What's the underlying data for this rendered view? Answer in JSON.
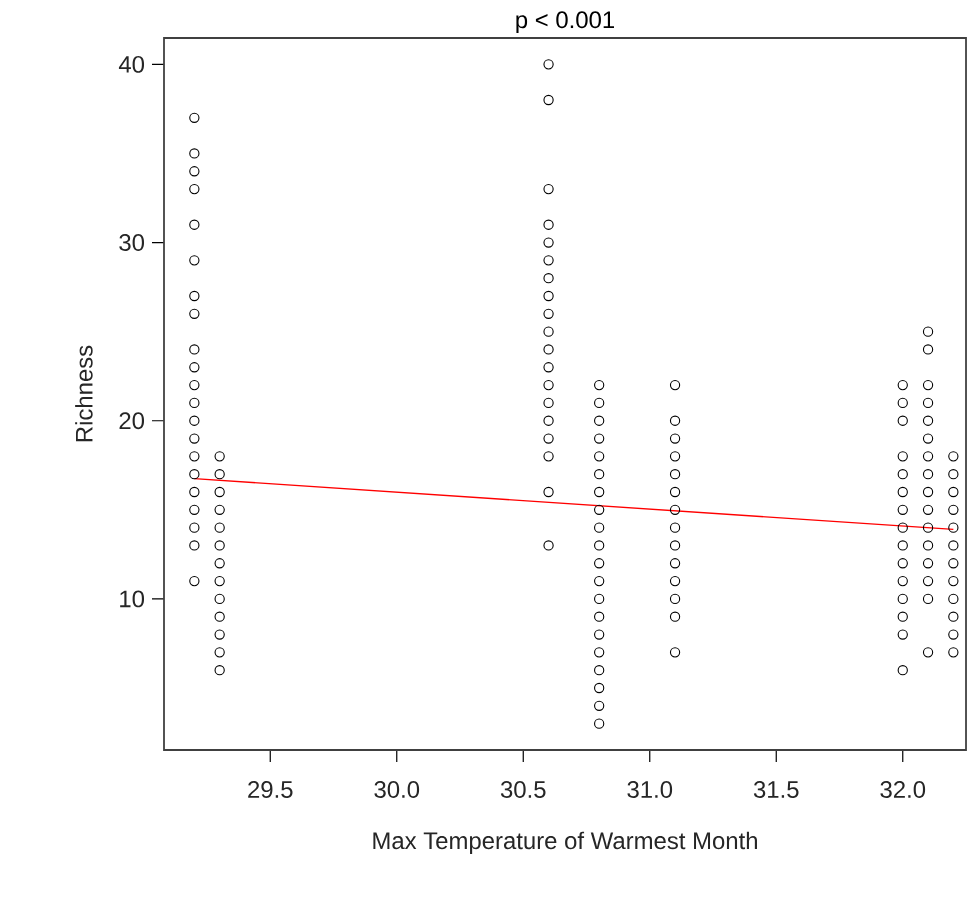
{
  "chart_data": {
    "type": "scatter",
    "title": "p < 0.001",
    "xlabel": "Max Temperature of Warmest Month",
    "ylabel": "Richness",
    "xlim": [
      29.08,
      32.25
    ],
    "ylim": [
      1.52,
      41.48
    ],
    "xticks": [
      29.5,
      {
        "value": 30.0,
        "label": "30.0"
      },
      30.5,
      {
        "value": 31.0,
        "label": "31.0"
      },
      31.5,
      {
        "value": 32.0,
        "label": "32.0"
      }
    ],
    "yticks": [
      10,
      20,
      30,
      40
    ],
    "marker": "circle",
    "series": [
      {
        "color": "#000000",
        "x": [
          29.2,
          29.2,
          29.2,
          29.2,
          29.2,
          29.2,
          29.2,
          29.2,
          29.2,
          29.2,
          29.2,
          29.2,
          29.2,
          29.2,
          29.2,
          29.2,
          29.2,
          29.2,
          29.2,
          29.2,
          29.2,
          29.3,
          29.3,
          29.3,
          29.3,
          29.3,
          29.3,
          29.3,
          29.3,
          29.3,
          29.3,
          29.3,
          29.3,
          29.3,
          30.6,
          30.6,
          30.6,
          30.6,
          30.6,
          30.6,
          30.6,
          30.6,
          30.6,
          30.6,
          30.6,
          30.6,
          30.6,
          30.6,
          30.6,
          30.6,
          30.6,
          30.6,
          30.6,
          30.8,
          30.8,
          30.8,
          30.8,
          30.8,
          30.8,
          30.8,
          30.8,
          30.8,
          30.8,
          30.8,
          30.8,
          30.8,
          30.8,
          30.8,
          30.8,
          30.8,
          30.8,
          30.8,
          30.8,
          31.1,
          31.1,
          31.1,
          31.1,
          31.1,
          31.1,
          31.1,
          31.1,
          31.1,
          31.1,
          31.1,
          31.1,
          31.1,
          31.1,
          32.0,
          32.0,
          32.0,
          32.0,
          32.0,
          32.0,
          32.0,
          32.0,
          32.0,
          32.0,
          32.0,
          32.0,
          32.0,
          32.0,
          32.0,
          32.1,
          32.1,
          32.1,
          32.1,
          32.1,
          32.1,
          32.1,
          32.1,
          32.1,
          32.1,
          32.1,
          32.1,
          32.1,
          32.1,
          32.1,
          32.1,
          32.2,
          32.2,
          32.2,
          32.2,
          32.2,
          32.2,
          32.2,
          32.2,
          32.2,
          32.2,
          32.2,
          32.2
        ],
        "values": [
          37,
          35,
          34,
          33,
          31,
          29,
          27,
          26,
          24,
          23,
          22,
          21,
          20,
          19,
          18,
          17,
          16,
          15,
          14,
          13,
          11,
          18,
          17,
          16,
          15,
          14,
          13,
          12,
          11,
          10,
          9,
          8,
          7,
          6,
          40,
          38,
          33,
          31,
          30,
          29,
          28,
          27,
          26,
          25,
          24,
          23,
          22,
          21,
          20,
          19,
          18,
          16,
          13,
          22,
          21,
          20,
          19,
          18,
          17,
          16,
          15,
          14,
          13,
          12,
          11,
          10,
          9,
          8,
          7,
          6,
          5,
          4,
          3,
          22,
          20,
          19,
          18,
          17,
          16,
          15,
          14,
          13,
          12,
          11,
          10,
          9,
          7,
          22,
          21,
          20,
          18,
          17,
          16,
          15,
          14,
          13,
          12,
          11,
          10,
          9,
          8,
          6,
          25,
          24,
          22,
          21,
          20,
          19,
          18,
          17,
          16,
          15,
          14,
          13,
          12,
          11,
          10,
          7,
          18,
          17,
          16,
          15,
          14,
          13,
          12,
          11,
          10,
          9,
          8,
          7
        ]
      },
      {
        "type": "line",
        "color": "#ff0000",
        "marker": "none",
        "x": [
          29.2,
          32.2
        ],
        "values": [
          16.75,
          13.9
        ]
      }
    ]
  }
}
